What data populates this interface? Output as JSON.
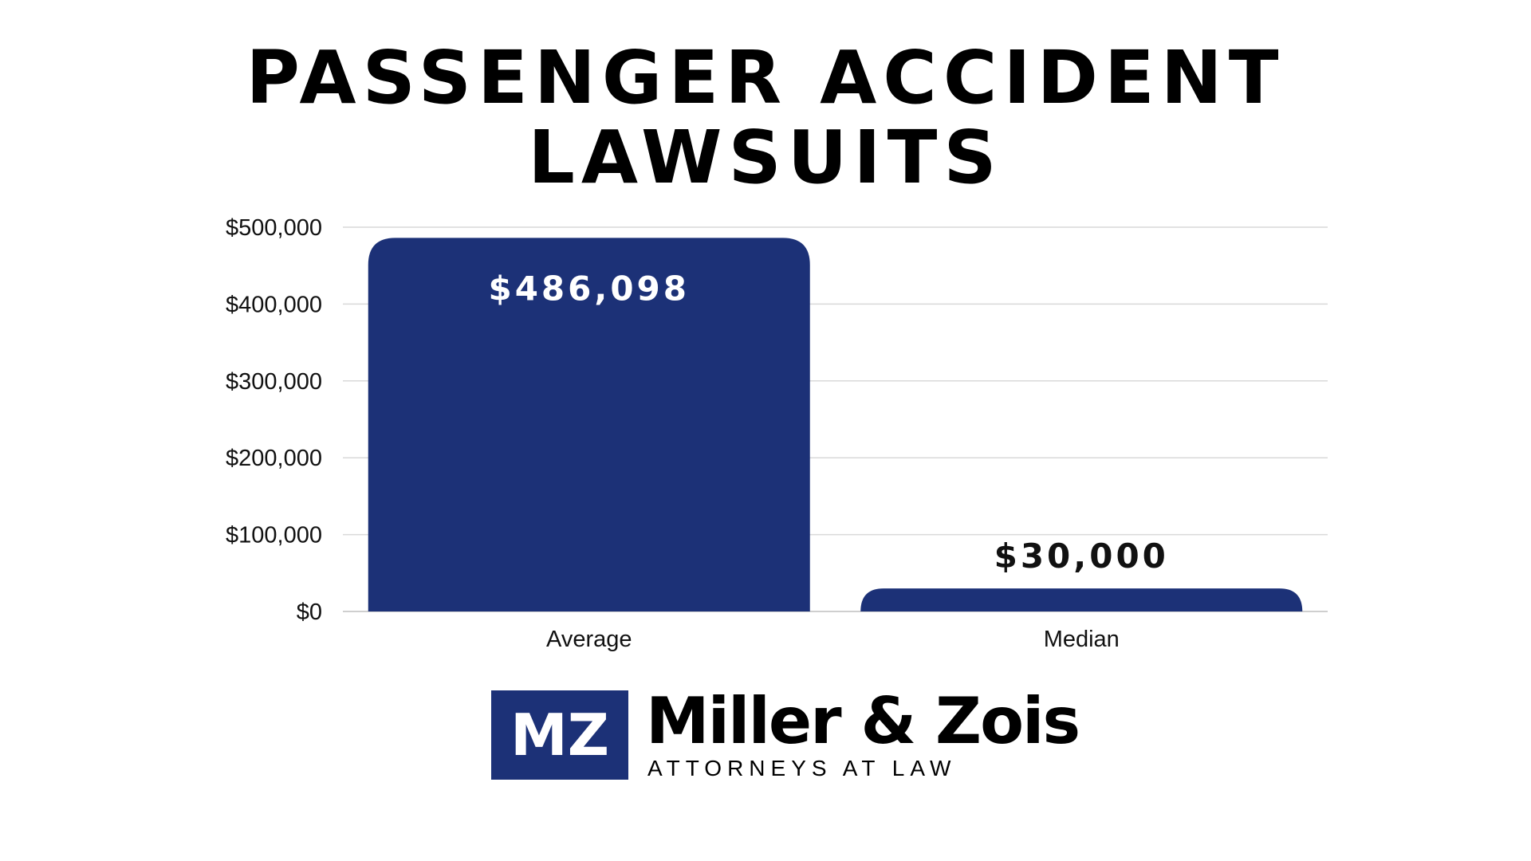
{
  "colors": {
    "bar": "#1c3177",
    "gridline": "#d9d9d9",
    "data_label_inside": "#ffffff",
    "data_label_outside": "#111111",
    "logo_box": "#1c3177"
  },
  "chart_data": {
    "type": "bar",
    "title": [
      "PASSENGER ACCIDENT",
      "LAWSUITS"
    ],
    "categories": [
      "Average",
      "Median"
    ],
    "values": [
      486098,
      30000
    ],
    "data_labels": [
      "$486,098",
      "$30,000"
    ],
    "ylim": [
      0,
      500000
    ],
    "yticks": [
      0,
      100000,
      200000,
      300000,
      400000,
      500000
    ],
    "ytick_labels": [
      "$0",
      "$100,000",
      "$200,000",
      "$300,000",
      "$400,000",
      "$500,000"
    ],
    "grid": true,
    "legend": "none"
  },
  "logo": {
    "mark": "MZ",
    "name": "Miller & Zois",
    "subtitle": "ATTORNEYS AT LAW"
  }
}
